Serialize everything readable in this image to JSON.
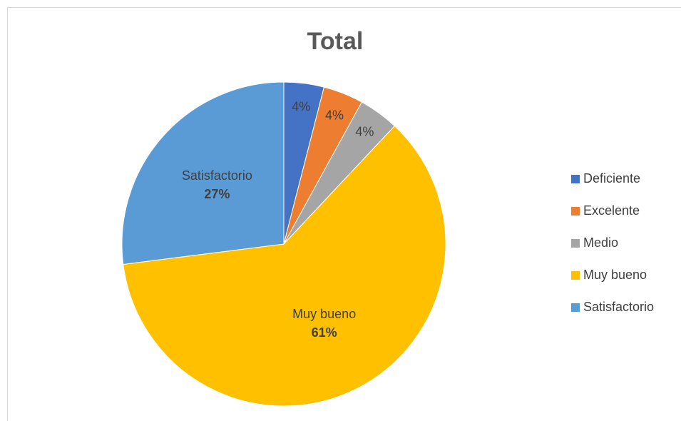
{
  "chart_data": {
    "type": "pie",
    "title": "Total",
    "categories": [
      "Deficiente",
      "Excelente",
      "Medio",
      "Muy bueno",
      "Satisfactorio"
    ],
    "values": [
      4,
      4,
      4,
      61,
      27
    ],
    "value_labels": [
      "4%",
      "4%",
      "4%",
      "61%",
      "27%"
    ],
    "colors": [
      "#4472c4",
      "#ed7d31",
      "#a5a5a5",
      "#ffc000",
      "#5b9bd5"
    ],
    "legend": "right"
  }
}
